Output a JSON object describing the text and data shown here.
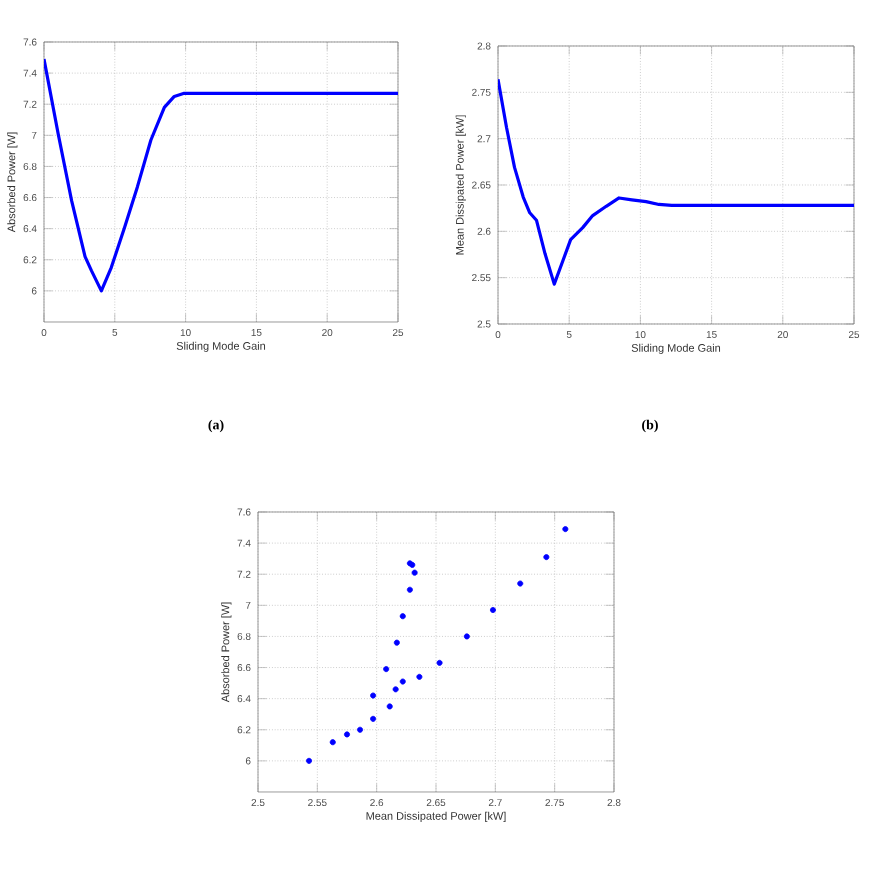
{
  "chart_data": [
    {
      "type": "line",
      "xlabel": "Sliding Mode Gain",
      "ylabel": "Absorbed Power [W]",
      "annotations": [
        "(a)"
      ],
      "color": "#0000ff",
      "grid": true,
      "x": [
        0,
        1.0,
        1.95,
        2.4,
        2.9,
        3.35,
        4.05,
        4.75,
        5.7,
        6.6,
        7.55,
        8.5,
        9.2,
        9.9,
        12,
        25
      ],
      "values": [
        7.49,
        7.01,
        6.58,
        6.41,
        6.22,
        6.13,
        6.0,
        6.15,
        6.41,
        6.67,
        6.97,
        7.18,
        7.25,
        7.27,
        7.27,
        7.27
      ],
      "xlim": [
        0,
        25
      ],
      "xticks": [
        0,
        5,
        10,
        15,
        20,
        25
      ],
      "ylim": [
        5.8,
        7.6
      ],
      "yticks": [
        6,
        6.2,
        6.4,
        6.6,
        6.8,
        7,
        7.2,
        7.4,
        7.6
      ]
    },
    {
      "type": "line",
      "xlabel": "Sliding Mode Gain",
      "ylabel": "Mean Dissipated Power [kW]",
      "annotations": [
        "(b)"
      ],
      "color": "#0000ff",
      "grid": true,
      "x": [
        0,
        0.6,
        1.16,
        1.77,
        2.23,
        2.7,
        3.3,
        3.95,
        4.55,
        5.1,
        5.95,
        6.65,
        7.6,
        8.5,
        9.4,
        10.4,
        11.3,
        12.2,
        25
      ],
      "values": [
        2.764,
        2.712,
        2.669,
        2.637,
        2.62,
        2.612,
        2.576,
        2.543,
        2.568,
        2.591,
        2.604,
        2.617,
        2.627,
        2.636,
        2.634,
        2.632,
        2.629,
        2.628,
        2.628
      ],
      "xlim": [
        0,
        25
      ],
      "xticks": [
        0,
        5,
        10,
        15,
        20,
        25
      ],
      "ylim": [
        2.5,
        2.8
      ],
      "yticks": [
        2.5,
        2.55,
        2.6,
        2.65,
        2.7,
        2.75,
        2.8
      ]
    },
    {
      "type": "scatter",
      "xlabel": "Mean Dissipated Power [kW]",
      "ylabel": "Absorbed Power [W]",
      "color": "#0000ff",
      "grid": true,
      "x": [
        2.759,
        2.743,
        2.721,
        2.698,
        2.676,
        2.653,
        2.636,
        2.622,
        2.616,
        2.611,
        2.597,
        2.575,
        2.563,
        2.543,
        2.586,
        2.597,
        2.608,
        2.617,
        2.622,
        2.628,
        2.632,
        2.63,
        2.628
      ],
      "values": [
        7.49,
        7.31,
        7.14,
        6.97,
        6.8,
        6.63,
        6.54,
        6.51,
        6.46,
        6.35,
        6.27,
        6.17,
        6.12,
        6.0,
        6.2,
        6.42,
        6.59,
        6.76,
        6.93,
        7.1,
        7.21,
        7.26,
        7.27
      ],
      "xlim": [
        2.5,
        2.8
      ],
      "xticks": [
        2.5,
        2.55,
        2.6,
        2.65,
        2.7,
        2.75,
        2.8
      ],
      "ylim": [
        5.8,
        7.6
      ],
      "yticks": [
        6,
        6.2,
        6.4,
        6.6,
        6.8,
        7,
        7.2,
        7.4,
        7.6
      ]
    }
  ]
}
